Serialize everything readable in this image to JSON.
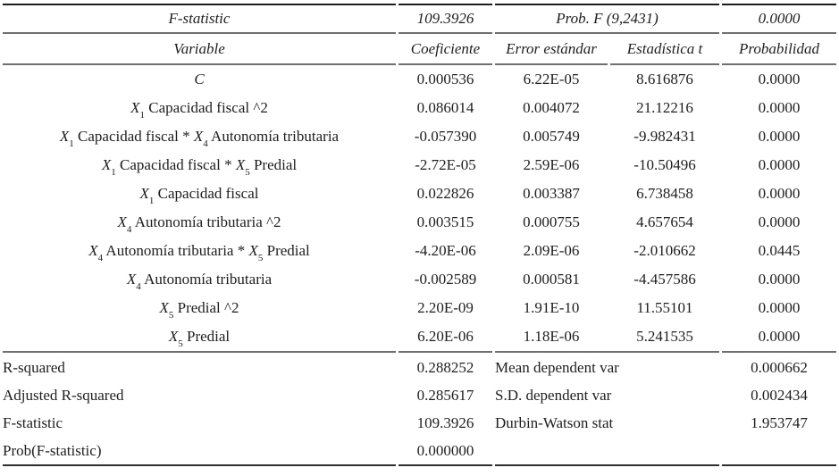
{
  "colors": {
    "background": "#ffffff",
    "text": "#1e1e1e",
    "rule_dark": "#1d1d1d",
    "rule_gray": "#6f6f6f"
  },
  "table": {
    "top_row": {
      "label": "F-statistic",
      "value": "109.3926",
      "prob_label": "Prob. F (9,2431)",
      "prob_value": "0.0000"
    },
    "columns": [
      "Variable",
      "Coeficiente",
      "Error estándar",
      "Estadística t",
      "Probabilidad"
    ],
    "rows": [
      {
        "variable": [
          {
            "t": "C",
            "s": "var"
          }
        ],
        "coeficiente": "0.000536",
        "error_estandar": "6.22E-05",
        "estadistica_t": "8.616876",
        "probabilidad": "0.0000"
      },
      {
        "variable": [
          {
            "t": "X",
            "s": "var"
          },
          {
            "t": "1",
            "s": "sub"
          },
          {
            "t": " Capacidad fiscal ^2",
            "s": "txt"
          }
        ],
        "coeficiente": "0.086014",
        "error_estandar": "0.004072",
        "estadistica_t": "21.12216",
        "probabilidad": "0.0000"
      },
      {
        "variable": [
          {
            "t": "X",
            "s": "var"
          },
          {
            "t": "1",
            "s": "sub"
          },
          {
            "t": " Capacidad fiscal * ",
            "s": "txt"
          },
          {
            "t": "X",
            "s": "var"
          },
          {
            "t": "4",
            "s": "sub"
          },
          {
            "t": " Autonomía tributaria",
            "s": "txt"
          }
        ],
        "coeficiente": "-0.057390",
        "error_estandar": "0.005749",
        "estadistica_t": "-9.982431",
        "probabilidad": "0.0000"
      },
      {
        "variable": [
          {
            "t": "X",
            "s": "var"
          },
          {
            "t": "1",
            "s": "sub"
          },
          {
            "t": " Capacidad fiscal * ",
            "s": "txt"
          },
          {
            "t": "X",
            "s": "var"
          },
          {
            "t": "5",
            "s": "sub"
          },
          {
            "t": " Predial",
            "s": "txt"
          }
        ],
        "coeficiente": "-2.72E-05",
        "error_estandar": "2.59E-06",
        "estadistica_t": "-10.50496",
        "probabilidad": "0.0000"
      },
      {
        "variable": [
          {
            "t": "X",
            "s": "var"
          },
          {
            "t": "1",
            "s": "sub"
          },
          {
            "t": " Capacidad fiscal",
            "s": "txt"
          }
        ],
        "coeficiente": "0.022826",
        "error_estandar": "0.003387",
        "estadistica_t": "6.738458",
        "probabilidad": "0.0000"
      },
      {
        "variable": [
          {
            "t": "X",
            "s": "var"
          },
          {
            "t": "4",
            "s": "sub"
          },
          {
            "t": " Autonomía tributaria ^2",
            "s": "txt"
          }
        ],
        "coeficiente": "0.003515",
        "error_estandar": "0.000755",
        "estadistica_t": "4.657654",
        "probabilidad": "0.0000"
      },
      {
        "variable": [
          {
            "t": "X",
            "s": "var"
          },
          {
            "t": "4",
            "s": "sub"
          },
          {
            "t": " Autonomía tributaria * ",
            "s": "txt"
          },
          {
            "t": "X",
            "s": "var"
          },
          {
            "t": "5",
            "s": "sub"
          },
          {
            "t": " Predial",
            "s": "txt"
          }
        ],
        "coeficiente": "-4.20E-06",
        "error_estandar": "2.09E-06",
        "estadistica_t": "-2.010662",
        "probabilidad": "0.0445"
      },
      {
        "variable": [
          {
            "t": "X",
            "s": "var"
          },
          {
            "t": "4",
            "s": "sub"
          },
          {
            "t": " Autonomía tributaria",
            "s": "txt"
          }
        ],
        "coeficiente": "-0.002589",
        "error_estandar": "0.000581",
        "estadistica_t": "-4.457586",
        "probabilidad": "0.0000"
      },
      {
        "variable": [
          {
            "t": "X",
            "s": "var"
          },
          {
            "t": "5",
            "s": "sub"
          },
          {
            "t": " Predial ^2",
            "s": "txt"
          }
        ],
        "coeficiente": "2.20E-09",
        "error_estandar": "1.91E-10",
        "estadistica_t": "11.55101",
        "probabilidad": "0.0000"
      },
      {
        "variable": [
          {
            "t": "X",
            "s": "var"
          },
          {
            "t": "5",
            "s": "sub"
          },
          {
            "t": " Predial",
            "s": "txt"
          }
        ],
        "coeficiente": "6.20E-06",
        "error_estandar": "1.18E-06",
        "estadistica_t": "5.241535",
        "probabilidad": "0.0000"
      }
    ],
    "summary": [
      {
        "label": "R-squared",
        "value": "0.288252",
        "label2": "Mean dependent var",
        "value2": "0.000662"
      },
      {
        "label": "Adjusted R-squared",
        "value": "0.285617",
        "label2": "S.D. dependent var",
        "value2": "0.002434"
      },
      {
        "label": "F-statistic",
        "value": "109.3926",
        "label2": "Durbin-Watson stat",
        "value2": "1.953747"
      },
      {
        "label": "Prob(F-statistic)",
        "value": "0.000000",
        "label2": "",
        "value2": ""
      }
    ]
  }
}
